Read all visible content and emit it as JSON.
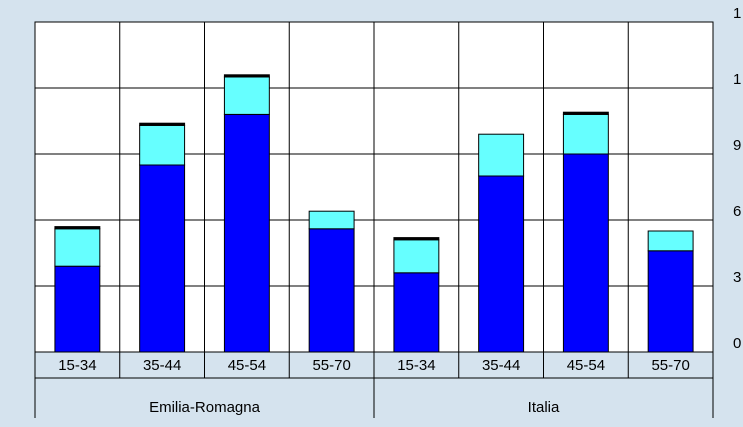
{
  "chart_data": {
    "type": "stacked-bar",
    "categories": [
      "15-34",
      "35-44",
      "45-54",
      "55-70",
      "15-34",
      "35-44",
      "45-54",
      "55-70"
    ],
    "groups": [
      "Emilia-Romagna",
      "Italia"
    ],
    "series": [
      {
        "color": "#0000ff",
        "values": [
          39,
          85,
          108,
          56,
          36,
          80,
          90,
          46
        ]
      },
      {
        "color": "#66ffff",
        "values": [
          17,
          18,
          17,
          8,
          15,
          19,
          18,
          9
        ]
      },
      {
        "color": "#000000",
        "values": [
          1,
          1,
          1,
          0,
          1,
          0,
          1,
          0
        ]
      }
    ],
    "ylim": [
      0,
      150
    ],
    "yticks": [
      0,
      {
        "value": 30,
        "label": "3"
      },
      {
        "value": 60,
        "label": "6"
      },
      {
        "value": 90,
        "label": "9"
      },
      {
        "value": 120,
        "label": "1"
      },
      {
        "value": 150,
        "label": "1"
      }
    ],
    "grid": true
  }
}
